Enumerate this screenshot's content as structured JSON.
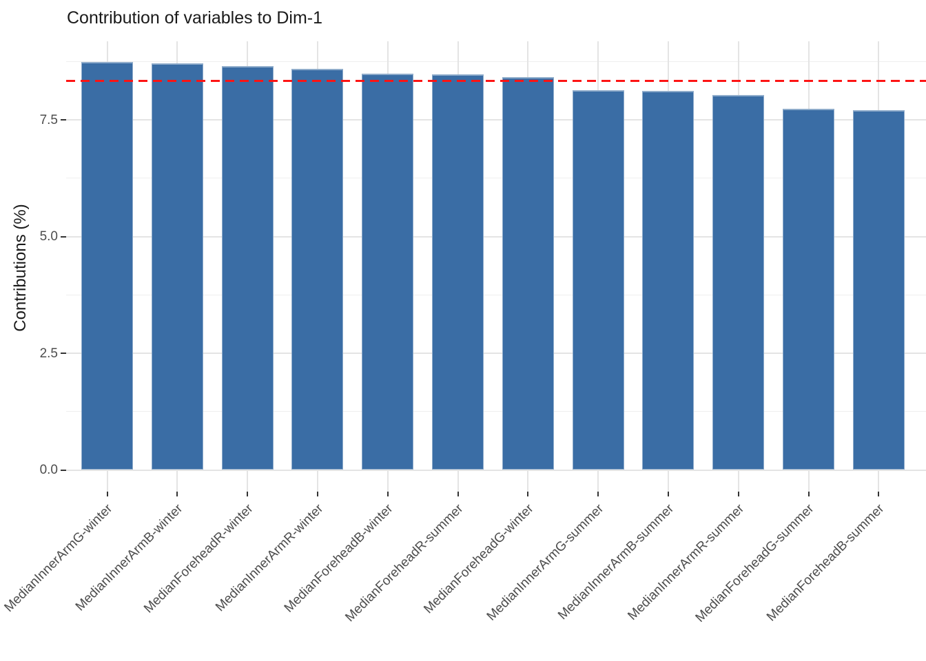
{
  "chart_data": {
    "type": "bar",
    "title": "Contribution of variables to Dim-1",
    "xlabel": "",
    "ylabel": "Contributions (%)",
    "categories": [
      "MedianInnerArmG-winter",
      "MedianInnerArmB-winter",
      "MedianForeheadR-winter",
      "MedianInnerArmR-winter",
      "MedianForeheadB-winter",
      "MedianForeheadR-summer",
      "MedianForeheadG-winter",
      "MedianInnerArmG-summer",
      "MedianInnerArmB-summer",
      "MedianInnerArmR-summer",
      "MedianForeheadG-summer",
      "MedianForeheadB-summer"
    ],
    "values": [
      8.74,
      8.71,
      8.66,
      8.6,
      8.49,
      8.48,
      8.42,
      8.14,
      8.12,
      8.03,
      7.74,
      7.71
    ],
    "reference_line": {
      "value": 8.33,
      "color": "#fd1414",
      "style": "dashed"
    },
    "yticks": [
      0.0,
      2.5,
      5.0,
      7.5
    ],
    "ytick_labels": [
      "0.0",
      "2.5",
      "5.0",
      "7.5"
    ],
    "minor_yticks": [
      1.25,
      3.75,
      6.25,
      8.75
    ],
    "ylim": [
      -0.46,
      9.19
    ],
    "grid": true,
    "legend": "none",
    "bar_color": "#3a6da5",
    "bar_border_color": "#8faccb",
    "grid_major_color": "#e4e4e4",
    "grid_minor_color": "#efefef",
    "axis_text_color": "#4d4d4d",
    "tick_color": "#333333"
  }
}
